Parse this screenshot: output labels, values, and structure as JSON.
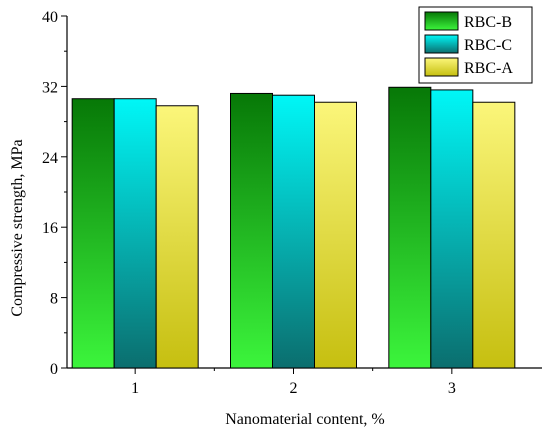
{
  "chart_data": {
    "type": "bar",
    "title": "",
    "xlabel": "Nanomaterial content, %",
    "ylabel": "Compressive strength, MPa",
    "categories": [
      "1",
      "2",
      "3"
    ],
    "ylim": [
      0,
      40
    ],
    "yticks": [
      0,
      8,
      16,
      24,
      32,
      40
    ],
    "legend_position": "top-right",
    "grid": false,
    "series": [
      {
        "name": "RBC-B",
        "values": [
          30.6,
          31.2,
          31.9
        ],
        "gradient": [
          "#3cf53c",
          "#077807"
        ]
      },
      {
        "name": "RBC-C",
        "values": [
          30.6,
          31.0,
          31.6
        ],
        "gradient": [
          "#0b6e6e",
          "#00f7f7"
        ]
      },
      {
        "name": "RBC-A",
        "values": [
          29.8,
          30.2,
          30.2
        ],
        "gradient": [
          "#c6bf10",
          "#fbf67a"
        ]
      }
    ]
  }
}
